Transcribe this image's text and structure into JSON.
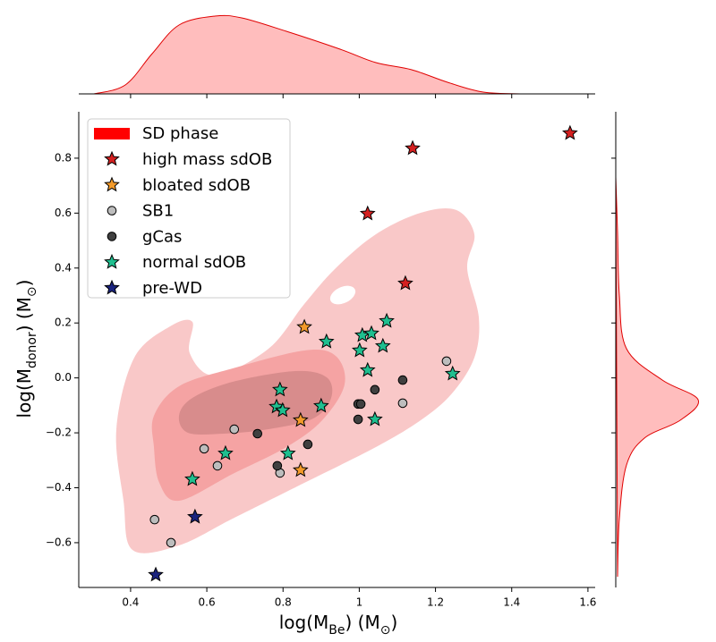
{
  "chart_data": {
    "type": "scatter",
    "xlabel": [
      "log(M",
      "Be",
      ") (M",
      "⊙",
      ")"
    ],
    "ylabel": [
      "log(M",
      "donor",
      ") (M",
      "⊙",
      ")"
    ],
    "xlim": [
      0.264,
      1.619
    ],
    "ylim": [
      -0.763,
      0.969
    ],
    "xticks": [
      0.4,
      0.6,
      0.8,
      1.0,
      1.2,
      1.4,
      1.6
    ],
    "yticks": [
      {
        "value": -0.6,
        "label": "−0.6"
      },
      {
        "value": -0.4,
        "label": "−0.4"
      },
      {
        "value": -0.2,
        "label": "−0.2"
      },
      {
        "value": 0,
        "label": "0.0"
      },
      0.2,
      0.4,
      0.6,
      0.8
    ],
    "density_name": "SD phase",
    "density_color": "#ff0000",
    "legend": "upper left",
    "series": [
      {
        "name": "high mass sdOB",
        "color": "#d42020",
        "marker": "star",
        "x": [
          1.553,
          1.14,
          1.022,
          1.121
        ],
        "y": [
          0.891,
          0.836,
          0.598,
          0.344
        ]
      },
      {
        "name": "bloated sdOB",
        "color": "#f39a2a",
        "marker": "star",
        "x": [
          0.856,
          0.846,
          0.846
        ],
        "y": [
          0.185,
          -0.154,
          -0.336
        ]
      },
      {
        "name": "SB1",
        "color": "#bdbdbd",
        "marker": "circle",
        "x": [
          1.229,
          1.114,
          0.672,
          0.593,
          0.628,
          0.792,
          0.463,
          0.506
        ],
        "y": [
          0.061,
          -0.092,
          -0.187,
          -0.258,
          -0.32,
          -0.346,
          -0.516,
          -0.6
        ]
      },
      {
        "name": "gCas",
        "color": "#404040",
        "marker": "circle",
        "x": [
          1.114,
          1.041,
          0.997,
          1.004,
          0.997,
          0.733,
          0.865,
          0.785
        ],
        "y": [
          -0.008,
          -0.043,
          -0.095,
          -0.095,
          -0.151,
          -0.203,
          -0.242,
          -0.32
        ]
      },
      {
        "name": "normal sdOB",
        "color": "#1fbf8f",
        "marker": "star",
        "x": [
          1.072,
          0.914,
          1.008,
          1.032,
          1.062,
          1.001,
          1.245,
          1.022,
          0.792,
          0.9,
          0.783,
          0.799,
          1.041,
          0.649,
          0.813,
          0.562
        ],
        "y": [
          0.207,
          0.132,
          0.155,
          0.162,
          0.116,
          0.1,
          0.015,
          0.028,
          -0.043,
          -0.102,
          -0.105,
          -0.118,
          -0.151,
          -0.275,
          -0.275,
          -0.369
        ]
      },
      {
        "name": "pre-WD",
        "color": "#1a237e",
        "marker": "star",
        "x": [
          0.569,
          0.466
        ],
        "y": [
          -0.506,
          -0.717
        ]
      }
    ]
  }
}
